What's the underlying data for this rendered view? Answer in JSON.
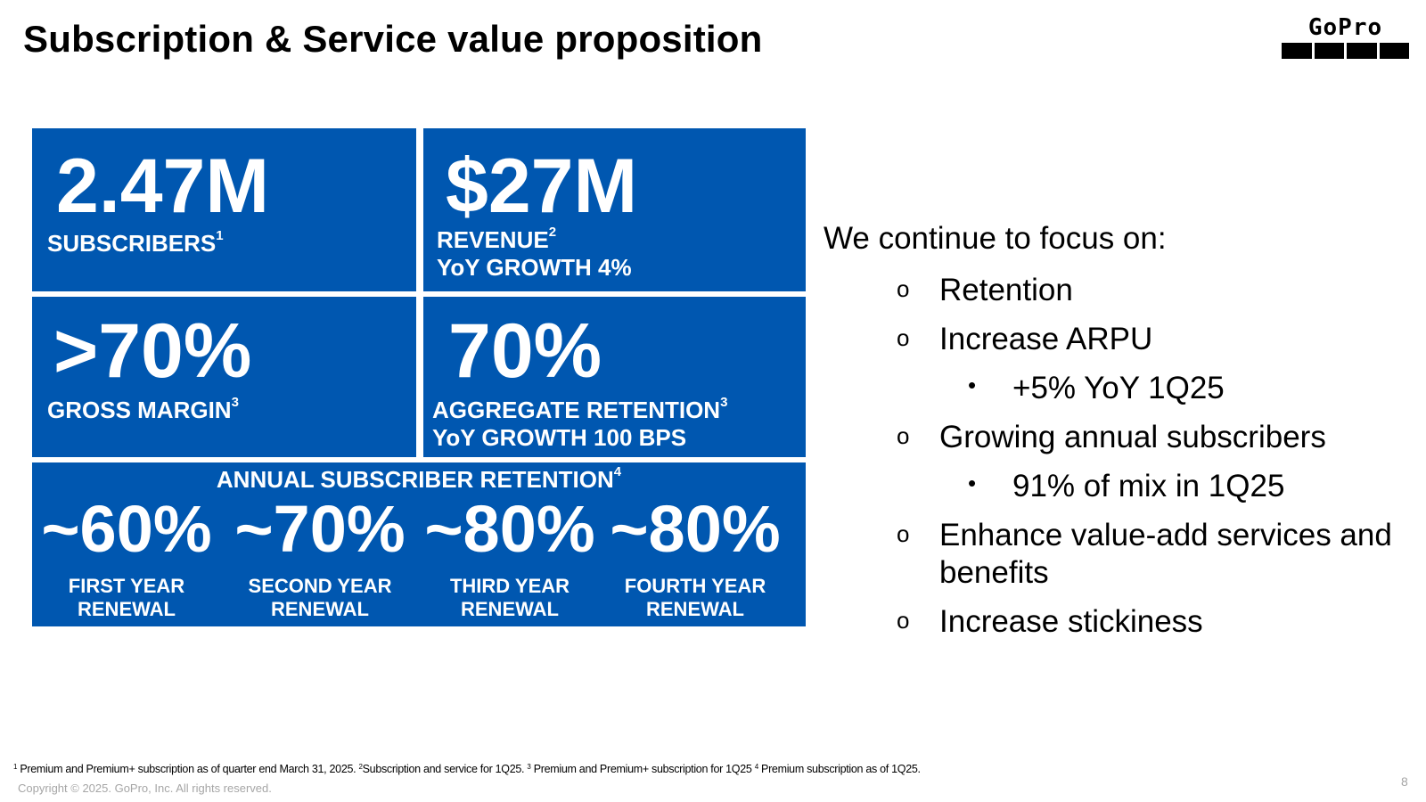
{
  "slide": {
    "title": "Subscription & Service value proposition",
    "page_number": "8",
    "logo_text": "GoPro"
  },
  "colors": {
    "tile_blue": "#0057b0",
    "text": "#000000",
    "muted": "#a6a6a6"
  },
  "kpis": {
    "subscribers": {
      "value": "2.47M",
      "label": "SUBSCRIBERS",
      "footnote_ref": "1"
    },
    "revenue": {
      "value": "$27M",
      "label": "REVENUE",
      "footnote_ref": "2",
      "growth": "YoY GROWTH 4%"
    },
    "gross_margin": {
      "value": ">70%",
      "label": "GROSS MARGIN",
      "footnote_ref": "3"
    },
    "retention": {
      "value": "70%",
      "label": "AGGREGATE RETENTION",
      "footnote_ref": "3",
      "growth": "YoY GROWTH 100 BPS"
    }
  },
  "annual_retention": {
    "title": "ANNUAL SUBSCRIBER RETENTION",
    "footnote_ref": "4",
    "items": [
      {
        "value": "~60%",
        "line1": "FIRST YEAR",
        "line2": "RENEWAL"
      },
      {
        "value": "~70%",
        "line1": "SECOND YEAR",
        "line2": "RENEWAL"
      },
      {
        "value": "~80%",
        "line1": "THIRD YEAR",
        "line2": "RENEWAL"
      },
      {
        "value": "~80%",
        "line1": "FOURTH YEAR",
        "line2": "RENEWAL"
      }
    ]
  },
  "focus": {
    "heading": "We continue to focus on:",
    "items": [
      {
        "marker": "o",
        "text": "Retention"
      },
      {
        "marker": "o",
        "text": "Increase ARPU"
      },
      {
        "marker": "•",
        "text": "+5% YoY 1Q25"
      },
      {
        "marker": "o",
        "text": "Growing annual subscribers"
      },
      {
        "marker": "•",
        "text": "91% of mix in 1Q25"
      },
      {
        "marker": "o",
        "text": "Enhance value-add services and"
      },
      {
        "marker": "",
        "text": "benefits"
      },
      {
        "marker": "o",
        "text": "Increase stickiness"
      }
    ]
  },
  "footnotes": {
    "n1": "1",
    "t1": " Premium and Premium+ subscription as of quarter end March 31, 2025. ",
    "n2": "2",
    "t2": "Subscription and service for 1Q25. ",
    "n3": "3",
    "t3": " Premium and Premium+ subscription for 1Q25 ",
    "n4": "4",
    "t4": " Premium subscription as of 1Q25."
  },
  "copyright": "Copyright © 2025. GoPro, Inc. All rights reserved."
}
